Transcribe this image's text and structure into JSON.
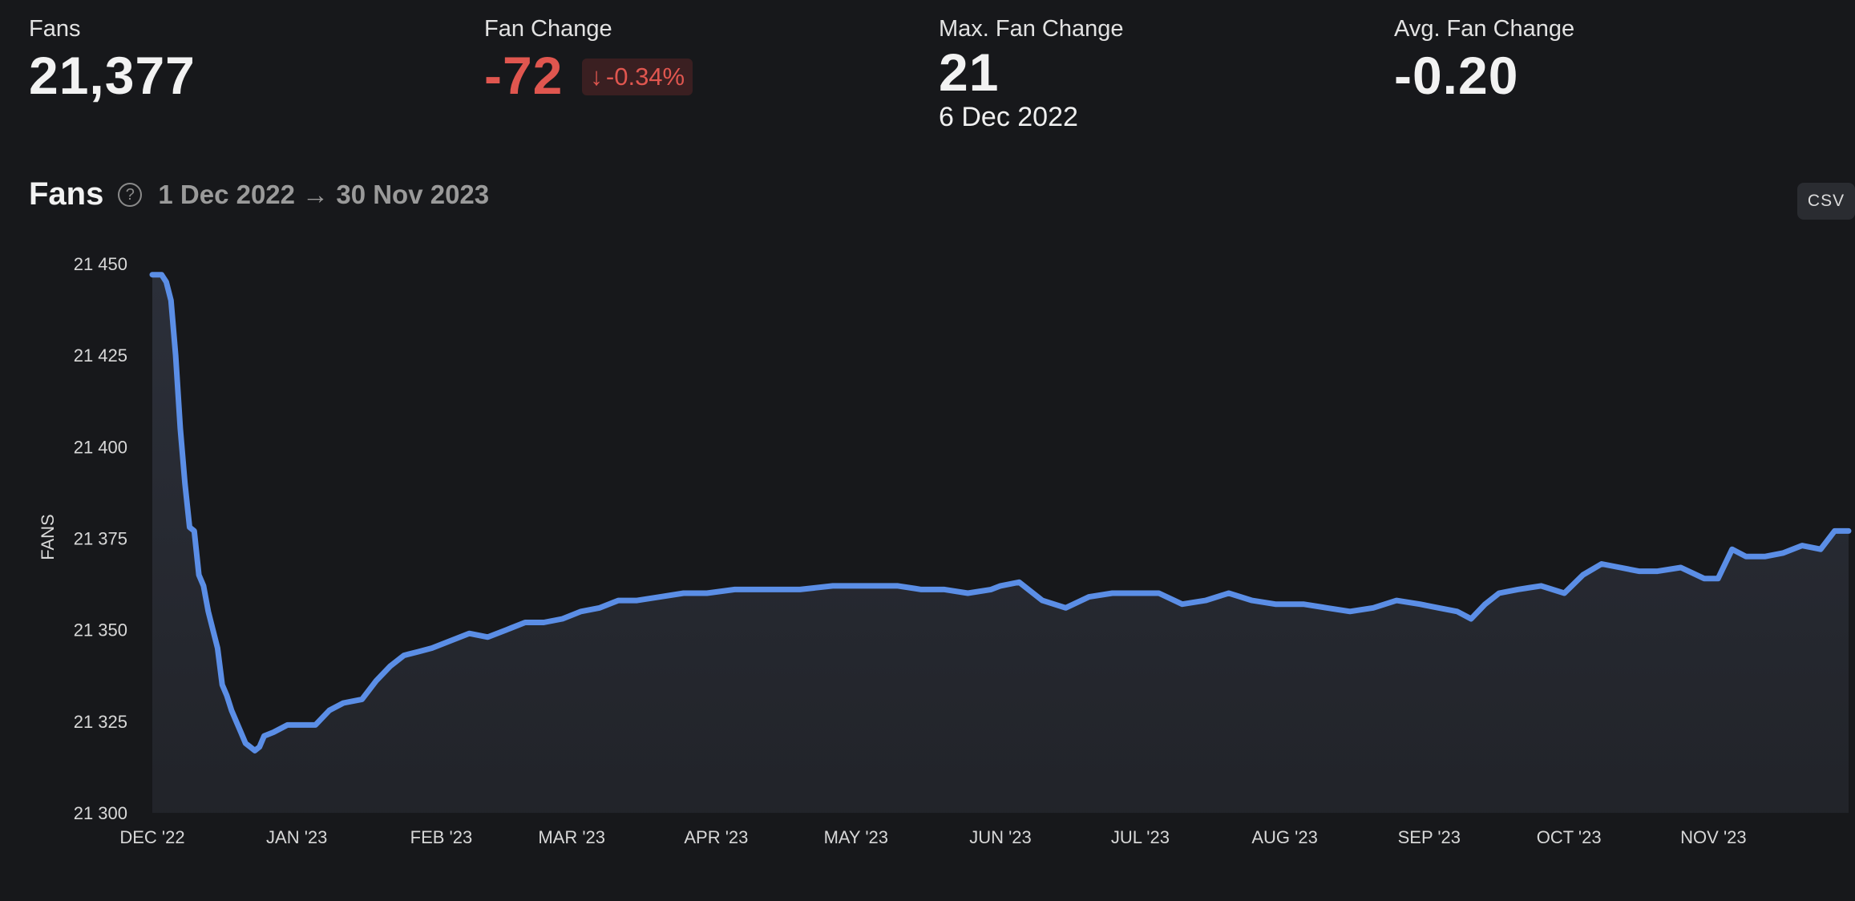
{
  "stats": {
    "fans": {
      "label": "Fans",
      "value": "21,377"
    },
    "fan_change": {
      "label": "Fan Change",
      "value": "-72",
      "badge_arrow": "↓",
      "badge": "-0.34%"
    },
    "max_fan_change": {
      "label": "Max. Fan Change",
      "value": "21",
      "date": "6 Dec 2022"
    },
    "avg_fan_change": {
      "label": "Avg. Fan Change",
      "value": "-0.20"
    }
  },
  "section": {
    "title": "Fans",
    "help_icon": "question-circle-icon",
    "range": "1 Dec 2022 → 30 Nov 2023",
    "csv_label": "CSV"
  },
  "colors": {
    "line": "#5b8ee6",
    "negative": "#e0564f",
    "background": "#17181b"
  },
  "chart_data": {
    "type": "area",
    "title": "Fans",
    "ylabel": "FANS",
    "xlabel": "",
    "ylim": [
      21300,
      21450
    ],
    "y_ticks": [
      21300,
      21325,
      21350,
      21375,
      21400,
      21425,
      21450
    ],
    "y_tick_labels": [
      "21 300",
      "21 325",
      "21 350",
      "21 375",
      "21 400",
      "21 425",
      "21 450"
    ],
    "x_ticks": [
      "2022-12-01",
      "2023-01-01",
      "2023-02-01",
      "2023-03-01",
      "2023-04-01",
      "2023-05-01",
      "2023-06-01",
      "2023-07-01",
      "2023-08-01",
      "2023-09-01",
      "2023-10-01",
      "2023-11-01"
    ],
    "x_tick_labels": [
      "DEC '22",
      "JAN '23",
      "FEB '23",
      "MAR '23",
      "APR '23",
      "MAY '23",
      "JUN '23",
      "JUL '23",
      "AUG '23",
      "SEP '23",
      "OCT '23",
      "NOV '23"
    ],
    "x_range": [
      "2022-12-01",
      "2023-11-30"
    ],
    "grid": false,
    "series": [
      {
        "x": [
          "2022-12-01",
          "2022-12-02",
          "2022-12-03",
          "2022-12-04",
          "2022-12-05",
          "2022-12-06",
          "2022-12-07",
          "2022-12-08",
          "2022-12-09",
          "2022-12-10",
          "2022-12-11",
          "2022-12-12",
          "2022-12-13",
          "2022-12-14",
          "2022-12-15",
          "2022-12-16",
          "2022-12-17",
          "2022-12-18",
          "2022-12-19",
          "2022-12-20",
          "2022-12-21",
          "2022-12-22",
          "2022-12-23",
          "2022-12-24",
          "2022-12-25",
          "2022-12-27",
          "2022-12-30",
          "2023-01-02",
          "2023-01-05",
          "2023-01-08",
          "2023-01-11",
          "2023-01-15",
          "2023-01-18",
          "2023-01-21",
          "2023-01-24",
          "2023-01-27",
          "2023-01-30",
          "2023-02-03",
          "2023-02-07",
          "2023-02-11",
          "2023-02-15",
          "2023-02-19",
          "2023-02-23",
          "2023-02-27",
          "2023-03-03",
          "2023-03-07",
          "2023-03-11",
          "2023-03-15",
          "2023-03-20",
          "2023-03-25",
          "2023-03-30",
          "2023-04-05",
          "2023-04-12",
          "2023-04-19",
          "2023-04-26",
          "2023-05-01",
          "2023-05-05",
          "2023-05-10",
          "2023-05-15",
          "2023-05-20",
          "2023-05-25",
          "2023-05-30",
          "2023-06-01",
          "2023-06-05",
          "2023-06-10",
          "2023-06-15",
          "2023-06-20",
          "2023-06-25",
          "2023-06-30",
          "2023-07-05",
          "2023-07-10",
          "2023-07-15",
          "2023-07-20",
          "2023-07-25",
          "2023-07-30",
          "2023-08-05",
          "2023-08-10",
          "2023-08-15",
          "2023-08-20",
          "2023-08-25",
          "2023-08-30",
          "2023-09-03",
          "2023-09-07",
          "2023-09-10",
          "2023-09-13",
          "2023-09-16",
          "2023-09-20",
          "2023-09-25",
          "2023-09-30",
          "2023-10-04",
          "2023-10-08",
          "2023-10-12",
          "2023-10-16",
          "2023-10-20",
          "2023-10-25",
          "2023-10-30",
          "2023-11-02",
          "2023-11-05",
          "2023-11-08",
          "2023-11-12",
          "2023-11-16",
          "2023-11-20",
          "2023-11-24",
          "2023-11-27",
          "2023-11-30"
        ],
        "y": [
          21447,
          21447,
          21447,
          21445,
          21440,
          21425,
          21405,
          21390,
          21378,
          21377,
          21365,
          21362,
          21355,
          21350,
          21345,
          21335,
          21332,
          21328,
          21325,
          21322,
          21319,
          21318,
          21317,
          21318,
          21321,
          21322,
          21324,
          21324,
          21324,
          21328,
          21330,
          21331,
          21336,
          21340,
          21343,
          21344,
          21345,
          21347,
          21349,
          21348,
          21350,
          21352,
          21352,
          21353,
          21355,
          21356,
          21358,
          21358,
          21359,
          21360,
          21360,
          21361,
          21361,
          21361,
          21362,
          21362,
          21362,
          21362,
          21361,
          21361,
          21360,
          21361,
          21362,
          21363,
          21358,
          21356,
          21359,
          21360,
          21360,
          21360,
          21357,
          21358,
          21360,
          21358,
          21357,
          21357,
          21356,
          21355,
          21356,
          21358,
          21357,
          21356,
          21355,
          21353,
          21357,
          21360,
          21361,
          21362,
          21360,
          21365,
          21368,
          21367,
          21366,
          21366,
          21367,
          21364,
          21364,
          21372,
          21370,
          21370,
          21371,
          21373,
          21372,
          21377,
          21377
        ]
      }
    ]
  }
}
